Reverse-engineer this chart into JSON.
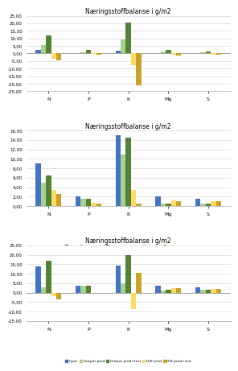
{
  "charts": [
    {
      "title": "Næringsstoffbalanse i g/m2",
      "categories": [
        "N",
        "P",
        "K",
        "Mg",
        "S"
      ],
      "series": {
        "Input": [
          2.5,
          0.3,
          2.0,
          0.3,
          0.3
        ],
        "Output prod": [
          5.5,
          0.8,
          9.5,
          1.5,
          1.0
        ],
        "Output prod+rest": [
          12.0,
          2.5,
          20.5,
          2.5,
          1.5
        ],
        "Diff prod": [
          -3.5,
          -0.5,
          -7.5,
          -1.0,
          -0.7
        ],
        "Diff prod+rest": [
          -4.5,
          -1.0,
          -21.0,
          -1.5,
          -1.0
        ]
      },
      "ylim": [
        -25,
        25
      ],
      "yticks": [
        -25,
        -20,
        -15,
        -10,
        -5,
        0,
        5,
        10,
        15,
        20,
        25
      ],
      "yticklabels": [
        "-25,00",
        "-20,00",
        "-15,00",
        "-10,00",
        "-5,00",
        "0,00",
        "5,00",
        "10,00",
        "15,00",
        "20,00",
        "25,00"
      ]
    },
    {
      "title": "Næringsstoffbalanse i g/m2",
      "categories": [
        "N",
        "P",
        "K",
        "Mg",
        "S"
      ],
      "series": {
        "Input": [
          9.0,
          2.0,
          15.0,
          2.0,
          1.5
        ],
        "Output prod": [
          5.0,
          1.5,
          11.0,
          0.5,
          0.5
        ],
        "Output prod+rest": [
          6.5,
          1.5,
          14.5,
          0.5,
          0.5
        ],
        "Diff prod": [
          3.5,
          0.7,
          3.5,
          1.2,
          1.0
        ],
        "Diff prod+rest": [
          2.5,
          0.6,
          0.5,
          1.0,
          1.0
        ]
      },
      "ylim": [
        0,
        16
      ],
      "yticks": [
        0,
        2,
        4,
        6,
        8,
        10,
        12,
        14,
        16
      ],
      "yticklabels": [
        "0,00",
        "2,00",
        "4,00",
        "6,00",
        "8,00",
        "10,00",
        "12,00",
        "14,00",
        "16,00"
      ]
    },
    {
      "title": "Næringsstoffbalanse i g/m2",
      "categories": [
        "N",
        "P",
        "K",
        "Mg",
        "S"
      ],
      "series": {
        "Input": [
          14.0,
          3.5,
          14.5,
          3.5,
          3.0
        ],
        "Output prod": [
          3.0,
          3.5,
          5.0,
          1.0,
          1.5
        ],
        "Output prod+rest": [
          17.0,
          3.5,
          20.0,
          1.5,
          1.5
        ],
        "Diff prod": [
          -2.0,
          0.0,
          -8.5,
          2.5,
          2.0
        ],
        "Diff prod+rest": [
          -3.5,
          -0.3,
          10.5,
          2.5,
          2.0
        ]
      },
      "ylim": [
        -15,
        25
      ],
      "yticks": [
        -15,
        -10,
        -5,
        0,
        5,
        10,
        15,
        20,
        25
      ],
      "yticklabels": [
        "-15,00",
        "-10,00",
        "-5,00",
        "0,00",
        "5,00",
        "10,00",
        "15,00",
        "20,00",
        "25,00"
      ]
    }
  ],
  "colors": {
    "Input": "#4472C4",
    "Output prod": "#A9D18E",
    "Output prod+rest": "#548235",
    "Diff prod": "#FFD966",
    "Diff prod+rest": "#C9A227"
  },
  "legend_labels": [
    "Input",
    "Output prod",
    "Output prod+rest",
    "Diff prod",
    "Diff prod+rest"
  ],
  "bar_width": 0.13,
  "background_color": "#FFFFFF",
  "grid_color": "#D9D9D9",
  "chart_bg": "#FFFFFF"
}
